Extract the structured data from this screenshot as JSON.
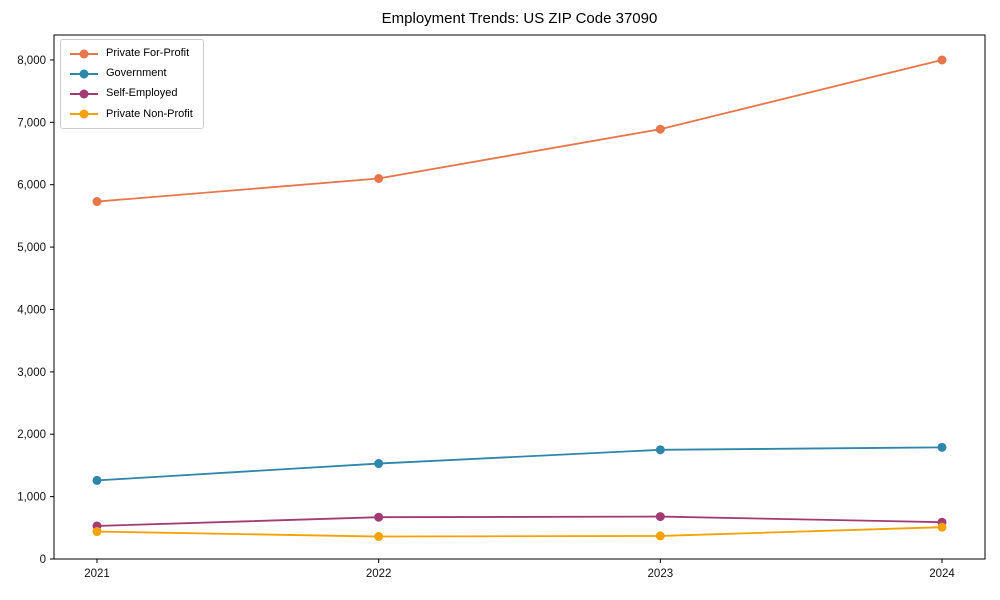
{
  "chart_data": {
    "type": "line",
    "title": "Employment Trends: US ZIP Code 37090",
    "x": [
      "2021",
      "2022",
      "2023",
      "2024"
    ],
    "series": [
      {
        "name": "Private For-Profit",
        "color": "#E8764B",
        "values": [
          5730,
          6100,
          6890,
          8000
        ]
      },
      {
        "name": "Government",
        "color": "#2E86AB",
        "values": [
          1260,
          1530,
          1750,
          1790
        ]
      },
      {
        "name": "Self-Employed",
        "color": "#A23B72",
        "values": [
          530,
          670,
          680,
          590
        ]
      },
      {
        "name": "Private Non-Profit",
        "color": "#F5A100",
        "values": [
          440,
          360,
          370,
          510
        ]
      }
    ],
    "xlabel": "",
    "ylabel": "",
    "ylim": [
      0,
      8400
    ],
    "yticks": [
      {
        "value": 0,
        "label": "0"
      },
      {
        "value": 1000,
        "label": "1,000"
      },
      {
        "value": 2000,
        "label": "2,000"
      },
      {
        "value": 3000,
        "label": "3,000"
      },
      {
        "value": 4000,
        "label": "4,000"
      },
      {
        "value": 5000,
        "label": "5,000"
      },
      {
        "value": 6000,
        "label": "6,000"
      },
      {
        "value": 7000,
        "label": "7,000"
      },
      {
        "value": 8000,
        "label": "8,000"
      }
    ],
    "grid": false,
    "legend_position": "upper left"
  }
}
